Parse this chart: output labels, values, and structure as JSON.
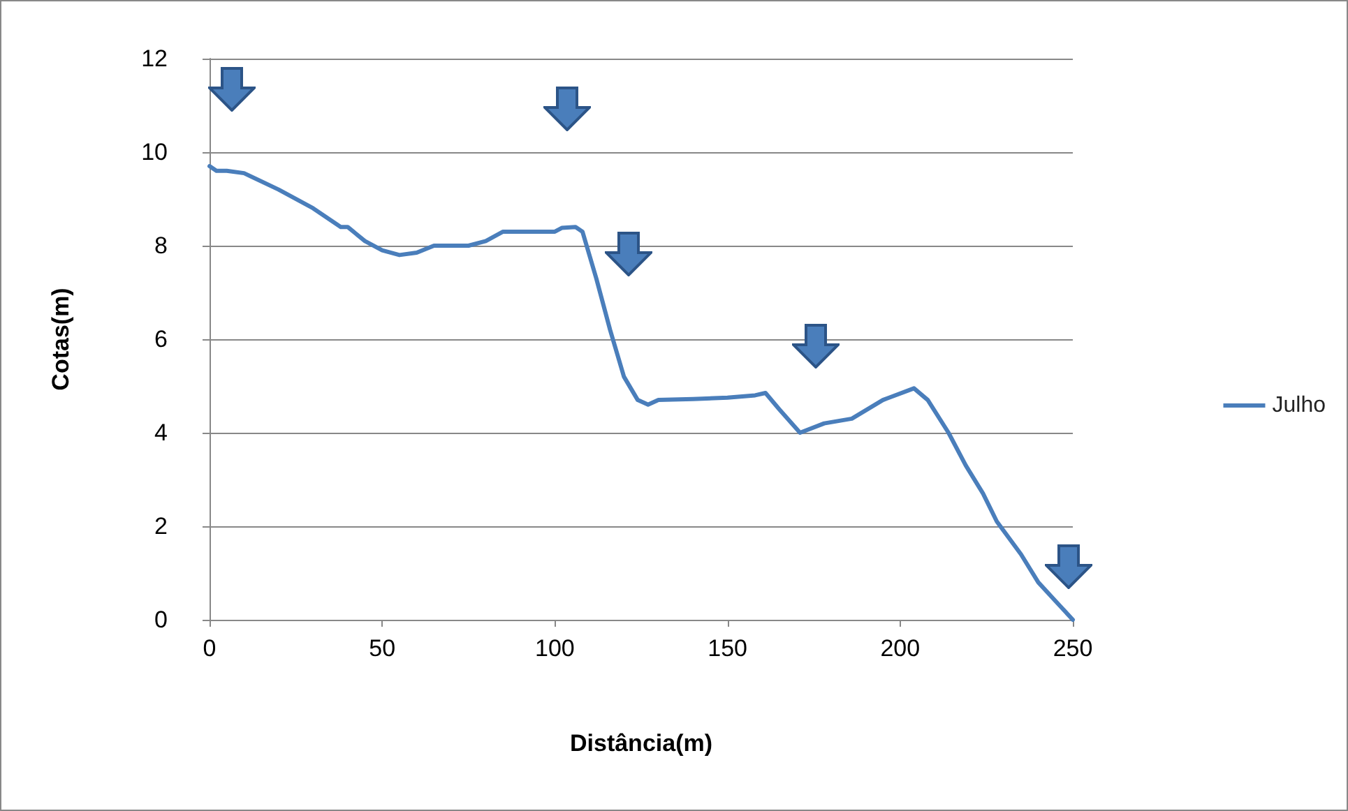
{
  "chart_data": {
    "type": "line",
    "xlabel": "Distância(m)",
    "ylabel": "Cotas(m)",
    "xlim": [
      0,
      250
    ],
    "xticks": [
      0,
      50,
      100,
      150,
      200,
      250
    ],
    "ylim": [
      0,
      12
    ],
    "yticks": [
      0,
      2,
      4,
      6,
      8,
      10,
      12
    ],
    "grid": "y",
    "legend": "right",
    "marker": "none",
    "line_style": "solid",
    "series": [
      {
        "name": "Julho",
        "color": "#4a7ebb",
        "x": [
          0,
          2,
          5,
          10,
          20,
          30,
          38,
          40,
          45,
          50,
          55,
          60,
          65,
          75,
          80,
          85,
          100,
          102,
          106,
          108,
          112,
          116,
          120,
          124,
          127,
          130,
          140,
          150,
          158,
          161,
          165,
          171,
          178,
          186,
          195,
          204,
          208,
          214,
          219,
          224,
          228,
          235,
          240,
          245,
          250
        ],
        "values": [
          9.7,
          9.6,
          9.6,
          9.55,
          9.2,
          8.8,
          8.4,
          8.4,
          8.1,
          7.9,
          7.8,
          7.85,
          8.0,
          8.0,
          8.1,
          8.3,
          8.3,
          8.38,
          8.4,
          8.3,
          7.3,
          6.2,
          5.2,
          4.7,
          4.6,
          4.7,
          4.72,
          4.75,
          4.8,
          4.85,
          4.5,
          4.0,
          4.2,
          4.3,
          4.7,
          4.95,
          4.7,
          4.0,
          3.3,
          2.7,
          2.1,
          1.4,
          0.8,
          0.4,
          0
        ]
      }
    ]
  }
}
